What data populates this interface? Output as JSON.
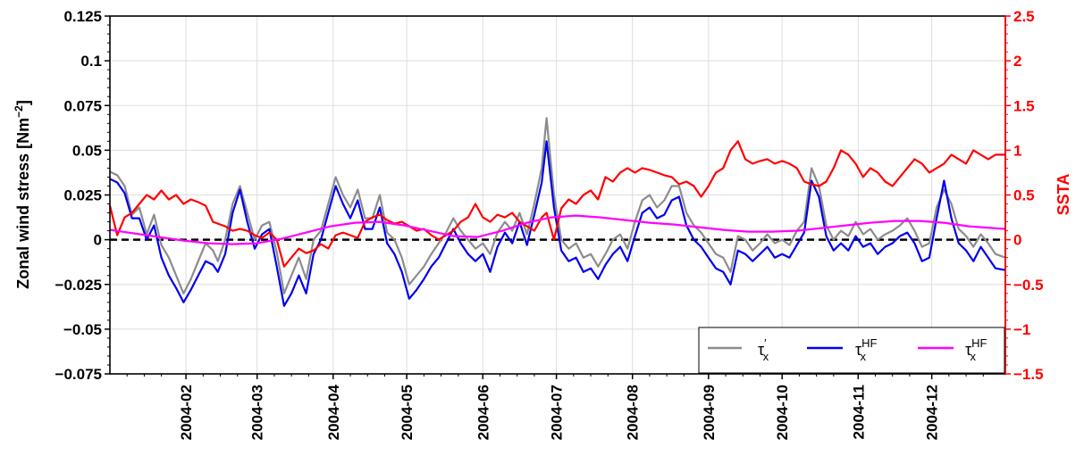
{
  "chart_data": {
    "type": "line",
    "title": "",
    "xlabel": "",
    "x_ticks": [
      "2004-02",
      "2004-03",
      "2004-04",
      "2004-05",
      "2004-06",
      "2004-07",
      "2004-08",
      "2004-09",
      "2004-10",
      "2004-11",
      "2004-12"
    ],
    "xlim": [
      "2004-01-01",
      "2004-12-31"
    ],
    "left_axis": {
      "label_text": "Zonal wind stress [Nm",
      "label_unit_exponent": "−2",
      "label_close": "]",
      "ylim": [
        -0.075,
        0.125
      ],
      "ticks": [
        -0.075,
        -0.05,
        -0.025,
        0,
        0.025,
        0.05,
        0.075,
        0.1,
        0.125
      ],
      "tick_labels": [
        "−0.075",
        "−0.05",
        "−0.025",
        "0",
        "0.025",
        "0.05",
        "0.075",
        "0.1",
        "0.125"
      ]
    },
    "right_axis": {
      "label": "SSTA",
      "color": "#ff0000",
      "ylim": [
        -1.5,
        2.5
      ],
      "ticks": [
        -1.5,
        -1,
        -0.5,
        0,
        0.5,
        1,
        1.5,
        2,
        2.5
      ],
      "tick_labels": [
        "−1.5",
        "−1",
        "−0.5",
        "0",
        "0.5",
        "1",
        "1.5",
        "2",
        "2.5"
      ]
    },
    "grid": true,
    "zero_line": {
      "y": 0,
      "style": "dashed",
      "color": "#000000"
    },
    "legend": {
      "placement": "lower-right",
      "entries": [
        {
          "base": "τ",
          "sub": "x",
          "sup": "′",
          "color": "#8c8c8c"
        },
        {
          "base": "τ",
          "sub": "x",
          "sup": "HF",
          "color": "#0000ee"
        },
        {
          "base": "τ",
          "sub": "x",
          "sup": "HF",
          "color": "#ff00ff"
        }
      ]
    },
    "series": [
      {
        "axis": "left",
        "color": "#8c8c8c",
        "x": [
          "2004-01-01",
          "2004-01-04",
          "2004-01-07",
          "2004-01-10",
          "2004-01-13",
          "2004-01-16",
          "2004-01-19",
          "2004-01-22",
          "2004-01-25",
          "2004-01-28",
          "2004-01-31",
          "2004-02-03",
          "2004-02-06",
          "2004-02-09",
          "2004-02-12",
          "2004-02-14",
          "2004-02-17",
          "2004-02-20",
          "2004-02-23",
          "2004-02-26",
          "2004-02-29",
          "2004-03-03",
          "2004-03-06",
          "2004-03-09",
          "2004-03-12",
          "2004-03-15",
          "2004-03-18",
          "2004-03-21",
          "2004-03-24",
          "2004-03-27",
          "2004-03-30",
          "2004-04-02",
          "2004-04-05",
          "2004-04-08",
          "2004-04-11",
          "2004-04-14",
          "2004-04-17",
          "2004-04-20",
          "2004-04-23",
          "2004-04-26",
          "2004-04-29",
          "2004-05-02",
          "2004-05-05",
          "2004-05-08",
          "2004-05-11",
          "2004-05-14",
          "2004-05-17",
          "2004-05-20",
          "2004-05-23",
          "2004-05-26",
          "2004-05-29",
          "2004-06-01",
          "2004-06-04",
          "2004-06-07",
          "2004-06-10",
          "2004-06-13",
          "2004-06-16",
          "2004-06-19",
          "2004-06-22",
          "2004-06-25",
          "2004-06-27",
          "2004-06-30",
          "2004-07-03",
          "2004-07-06",
          "2004-07-09",
          "2004-07-12",
          "2004-07-15",
          "2004-07-18",
          "2004-07-21",
          "2004-07-24",
          "2004-07-27",
          "2004-07-30",
          "2004-08-02",
          "2004-08-05",
          "2004-08-08",
          "2004-08-11",
          "2004-08-14",
          "2004-08-17",
          "2004-08-20",
          "2004-08-23",
          "2004-08-26",
          "2004-08-29",
          "2004-09-01",
          "2004-09-04",
          "2004-09-07",
          "2004-09-10",
          "2004-09-13",
          "2004-09-16",
          "2004-09-19",
          "2004-09-22",
          "2004-09-25",
          "2004-09-28",
          "2004-10-01",
          "2004-10-04",
          "2004-10-07",
          "2004-10-10",
          "2004-10-13",
          "2004-10-16",
          "2004-10-19",
          "2004-10-22",
          "2004-10-25",
          "2004-10-28",
          "2004-10-31",
          "2004-11-03",
          "2004-11-06",
          "2004-11-09",
          "2004-11-12",
          "2004-11-15",
          "2004-11-18",
          "2004-11-21",
          "2004-11-24",
          "2004-11-27",
          "2004-11-30",
          "2004-12-03",
          "2004-12-06",
          "2004-12-09",
          "2004-12-12",
          "2004-12-15",
          "2004-12-18",
          "2004-12-21",
          "2004-12-24",
          "2004-12-27",
          "2004-12-31"
        ],
        "values": [
          0.038,
          0.036,
          0.03,
          0.014,
          0.018,
          0.003,
          0.014,
          -0.003,
          -0.01,
          -0.02,
          -0.03,
          -0.022,
          -0.012,
          -0.002,
          -0.006,
          -0.012,
          0.0,
          0.02,
          0.03,
          0.015,
          0.0,
          0.008,
          0.01,
          -0.007,
          -0.03,
          -0.02,
          -0.01,
          -0.022,
          0.0,
          0.005,
          0.02,
          0.035,
          0.025,
          0.018,
          0.028,
          0.012,
          0.012,
          0.025,
          0.004,
          0.0,
          -0.01,
          -0.025,
          -0.02,
          -0.015,
          -0.008,
          -0.002,
          0.004,
          0.012,
          0.005,
          0.0,
          -0.005,
          -0.002,
          -0.008,
          0.004,
          0.01,
          0.005,
          0.015,
          0.003,
          0.02,
          0.04,
          0.068,
          0.025,
          0.0,
          -0.005,
          -0.002,
          -0.01,
          -0.008,
          -0.015,
          -0.008,
          0.0,
          0.003,
          -0.005,
          0.01,
          0.022,
          0.025,
          0.018,
          0.022,
          0.03,
          0.03,
          0.015,
          0.008,
          0.004,
          -0.002,
          -0.008,
          -0.01,
          -0.018,
          0.002,
          0.0,
          -0.006,
          -0.002,
          0.003,
          -0.002,
          0.0,
          -0.003,
          0.005,
          0.01,
          0.04,
          0.03,
          0.008,
          0.0,
          0.005,
          0.002,
          0.01,
          0.003,
          0.006,
          0.0,
          0.003,
          0.005,
          0.008,
          0.012,
          0.005,
          -0.004,
          -0.002,
          0.018,
          0.028,
          0.02,
          0.006,
          0.002,
          -0.004,
          0.003,
          -0.002,
          -0.008,
          -0.01
        ]
      },
      {
        "axis": "left",
        "color": "#0000ee",
        "x": [
          "2004-01-01",
          "2004-01-04",
          "2004-01-07",
          "2004-01-10",
          "2004-01-13",
          "2004-01-16",
          "2004-01-19",
          "2004-01-22",
          "2004-01-25",
          "2004-01-28",
          "2004-01-31",
          "2004-02-03",
          "2004-02-06",
          "2004-02-09",
          "2004-02-12",
          "2004-02-14",
          "2004-02-17",
          "2004-02-20",
          "2004-02-23",
          "2004-02-26",
          "2004-02-29",
          "2004-03-03",
          "2004-03-06",
          "2004-03-09",
          "2004-03-12",
          "2004-03-15",
          "2004-03-18",
          "2004-03-21",
          "2004-03-24",
          "2004-03-27",
          "2004-03-30",
          "2004-04-02",
          "2004-04-05",
          "2004-04-08",
          "2004-04-11",
          "2004-04-14",
          "2004-04-17",
          "2004-04-20",
          "2004-04-23",
          "2004-04-26",
          "2004-04-29",
          "2004-05-02",
          "2004-05-05",
          "2004-05-08",
          "2004-05-11",
          "2004-05-14",
          "2004-05-17",
          "2004-05-20",
          "2004-05-23",
          "2004-05-26",
          "2004-05-29",
          "2004-06-01",
          "2004-06-04",
          "2004-06-07",
          "2004-06-10",
          "2004-06-13",
          "2004-06-16",
          "2004-06-19",
          "2004-06-22",
          "2004-06-25",
          "2004-06-27",
          "2004-06-30",
          "2004-07-03",
          "2004-07-06",
          "2004-07-09",
          "2004-07-12",
          "2004-07-15",
          "2004-07-18",
          "2004-07-21",
          "2004-07-24",
          "2004-07-27",
          "2004-07-30",
          "2004-08-02",
          "2004-08-05",
          "2004-08-08",
          "2004-08-11",
          "2004-08-14",
          "2004-08-17",
          "2004-08-20",
          "2004-08-23",
          "2004-08-26",
          "2004-08-29",
          "2004-09-01",
          "2004-09-04",
          "2004-09-07",
          "2004-09-10",
          "2004-09-13",
          "2004-09-16",
          "2004-09-19",
          "2004-09-22",
          "2004-09-25",
          "2004-09-28",
          "2004-10-01",
          "2004-10-04",
          "2004-10-07",
          "2004-10-10",
          "2004-10-13",
          "2004-10-16",
          "2004-10-19",
          "2004-10-22",
          "2004-10-25",
          "2004-10-28",
          "2004-10-31",
          "2004-11-03",
          "2004-11-06",
          "2004-11-09",
          "2004-11-12",
          "2004-11-15",
          "2004-11-18",
          "2004-11-21",
          "2004-11-24",
          "2004-11-27",
          "2004-11-30",
          "2004-12-03",
          "2004-12-06",
          "2004-12-09",
          "2004-12-12",
          "2004-12-15",
          "2004-12-18",
          "2004-12-21",
          "2004-12-24",
          "2004-12-27",
          "2004-12-31"
        ],
        "values": [
          0.034,
          0.032,
          0.026,
          0.012,
          0.012,
          0.0,
          0.008,
          -0.01,
          -0.02,
          -0.027,
          -0.035,
          -0.028,
          -0.02,
          -0.012,
          -0.014,
          -0.018,
          -0.008,
          0.015,
          0.028,
          0.01,
          -0.005,
          0.003,
          0.006,
          -0.015,
          -0.037,
          -0.03,
          -0.02,
          -0.03,
          -0.008,
          0.0,
          0.015,
          0.03,
          0.02,
          0.012,
          0.022,
          0.006,
          0.006,
          0.018,
          -0.002,
          -0.008,
          -0.018,
          -0.033,
          -0.028,
          -0.022,
          -0.015,
          -0.01,
          -0.002,
          0.006,
          -0.002,
          -0.008,
          -0.012,
          -0.008,
          -0.018,
          -0.004,
          0.004,
          -0.002,
          0.01,
          -0.003,
          0.014,
          0.032,
          0.055,
          0.018,
          -0.006,
          -0.012,
          -0.01,
          -0.018,
          -0.016,
          -0.022,
          -0.014,
          -0.008,
          -0.004,
          -0.012,
          0.002,
          0.015,
          0.018,
          0.012,
          0.014,
          0.022,
          0.024,
          0.008,
          0.0,
          -0.004,
          -0.01,
          -0.016,
          -0.018,
          -0.025,
          -0.006,
          -0.008,
          -0.012,
          -0.008,
          -0.004,
          -0.01,
          -0.008,
          -0.01,
          -0.003,
          0.004,
          0.033,
          0.024,
          0.002,
          -0.006,
          -0.002,
          -0.006,
          0.002,
          -0.004,
          -0.002,
          -0.008,
          -0.004,
          -0.002,
          0.002,
          0.004,
          -0.002,
          -0.012,
          -0.01,
          0.012,
          0.033,
          0.012,
          -0.002,
          -0.006,
          -0.012,
          -0.004,
          -0.01,
          -0.016,
          -0.017
        ]
      },
      {
        "axis": "right",
        "color": "#ff0000",
        "x": [
          "2004-01-01",
          "2004-01-04",
          "2004-01-07",
          "2004-01-10",
          "2004-01-13",
          "2004-01-16",
          "2004-01-19",
          "2004-01-22",
          "2004-01-25",
          "2004-01-28",
          "2004-01-31",
          "2004-02-03",
          "2004-02-06",
          "2004-02-09",
          "2004-02-12",
          "2004-02-14",
          "2004-02-17",
          "2004-02-20",
          "2004-02-23",
          "2004-02-26",
          "2004-02-29",
          "2004-03-03",
          "2004-03-06",
          "2004-03-09",
          "2004-03-12",
          "2004-03-15",
          "2004-03-18",
          "2004-03-21",
          "2004-03-24",
          "2004-03-27",
          "2004-03-30",
          "2004-04-02",
          "2004-04-05",
          "2004-04-08",
          "2004-04-11",
          "2004-04-14",
          "2004-04-17",
          "2004-04-20",
          "2004-04-23",
          "2004-04-26",
          "2004-04-29",
          "2004-05-02",
          "2004-05-05",
          "2004-05-08",
          "2004-05-11",
          "2004-05-14",
          "2004-05-17",
          "2004-05-20",
          "2004-05-23",
          "2004-05-26",
          "2004-05-29",
          "2004-06-01",
          "2004-06-04",
          "2004-06-07",
          "2004-06-10",
          "2004-06-13",
          "2004-06-16",
          "2004-06-19",
          "2004-06-22",
          "2004-06-25",
          "2004-06-27",
          "2004-06-30",
          "2004-07-03",
          "2004-07-06",
          "2004-07-09",
          "2004-07-12",
          "2004-07-15",
          "2004-07-18",
          "2004-07-21",
          "2004-07-24",
          "2004-07-27",
          "2004-07-30",
          "2004-08-02",
          "2004-08-05",
          "2004-08-08",
          "2004-08-11",
          "2004-08-14",
          "2004-08-17",
          "2004-08-20",
          "2004-08-23",
          "2004-08-26",
          "2004-08-29",
          "2004-09-01",
          "2004-09-04",
          "2004-09-07",
          "2004-09-10",
          "2004-09-13",
          "2004-09-16",
          "2004-09-19",
          "2004-09-22",
          "2004-09-25",
          "2004-09-28",
          "2004-10-01",
          "2004-10-04",
          "2004-10-07",
          "2004-10-10",
          "2004-10-13",
          "2004-10-16",
          "2004-10-19",
          "2004-10-22",
          "2004-10-25",
          "2004-10-28",
          "2004-10-31",
          "2004-11-03",
          "2004-11-06",
          "2004-11-09",
          "2004-11-12",
          "2004-11-15",
          "2004-11-18",
          "2004-11-21",
          "2004-11-24",
          "2004-11-27",
          "2004-11-30",
          "2004-12-03",
          "2004-12-06",
          "2004-12-09",
          "2004-12-12",
          "2004-12-15",
          "2004-12-18",
          "2004-12-21",
          "2004-12-24",
          "2004-12-27",
          "2004-12-31"
        ],
        "values": [
          0.38,
          0.05,
          0.25,
          0.3,
          0.4,
          0.5,
          0.45,
          0.55,
          0.45,
          0.5,
          0.4,
          0.45,
          0.42,
          0.38,
          0.2,
          0.18,
          0.15,
          0.1,
          0.12,
          0.1,
          0.05,
          0.02,
          0.08,
          0.0,
          -0.3,
          -0.2,
          -0.1,
          -0.15,
          -0.12,
          -0.05,
          -0.1,
          0.05,
          0.08,
          0.05,
          0.02,
          0.2,
          0.25,
          0.28,
          0.22,
          0.18,
          0.2,
          0.15,
          0.1,
          0.12,
          0.05,
          0.0,
          0.05,
          0.1,
          0.2,
          0.25,
          0.4,
          0.25,
          0.2,
          0.28,
          0.25,
          0.3,
          0.2,
          0.15,
          0.1,
          0.25,
          0.3,
          0.0,
          0.35,
          0.45,
          0.4,
          0.5,
          0.55,
          0.45,
          0.7,
          0.65,
          0.75,
          0.8,
          0.75,
          0.8,
          0.78,
          0.75,
          0.72,
          0.7,
          0.62,
          0.65,
          0.6,
          0.48,
          0.6,
          0.75,
          0.8,
          1.0,
          1.1,
          0.9,
          0.85,
          0.88,
          0.9,
          0.85,
          0.88,
          0.85,
          0.8,
          0.65,
          0.62,
          0.6,
          0.65,
          0.8,
          1.0,
          0.95,
          0.85,
          0.7,
          0.8,
          0.75,
          0.65,
          0.6,
          0.7,
          0.8,
          0.9,
          0.85,
          0.75,
          0.8,
          0.85,
          0.95,
          0.9,
          0.85,
          1.0,
          0.95,
          0.9,
          0.95,
          0.95
        ]
      },
      {
        "axis": "left",
        "color": "#ff00ff",
        "x": [
          "2004-01-01",
          "2004-01-11",
          "2004-01-21",
          "2004-01-31",
          "2004-02-10",
          "2004-02-20",
          "2004-03-01",
          "2004-03-11",
          "2004-03-21",
          "2004-03-31",
          "2004-04-10",
          "2004-04-20",
          "2004-04-30",
          "2004-05-10",
          "2004-05-20",
          "2004-05-30",
          "2004-06-09",
          "2004-06-19",
          "2004-06-29",
          "2004-07-09",
          "2004-07-19",
          "2004-07-29",
          "2004-08-08",
          "2004-08-18",
          "2004-08-28",
          "2004-09-07",
          "2004-09-17",
          "2004-09-27",
          "2004-10-07",
          "2004-10-17",
          "2004-10-27",
          "2004-11-06",
          "2004-11-16",
          "2004-11-26",
          "2004-12-06",
          "2004-12-16",
          "2004-12-31"
        ],
        "values": [
          0.0055,
          0.0035,
          0.0015,
          -0.0005,
          -0.002,
          -0.0025,
          -0.002,
          0.0005,
          0.004,
          0.0075,
          0.0095,
          0.01,
          0.008,
          0.005,
          0.002,
          0.0015,
          0.005,
          0.0095,
          0.0125,
          0.0135,
          0.0125,
          0.011,
          0.0095,
          0.0085,
          0.007,
          0.0055,
          0.0045,
          0.0045,
          0.005,
          0.0065,
          0.008,
          0.0095,
          0.0105,
          0.0105,
          0.0095,
          0.0075,
          0.006
        ]
      }
    ]
  }
}
